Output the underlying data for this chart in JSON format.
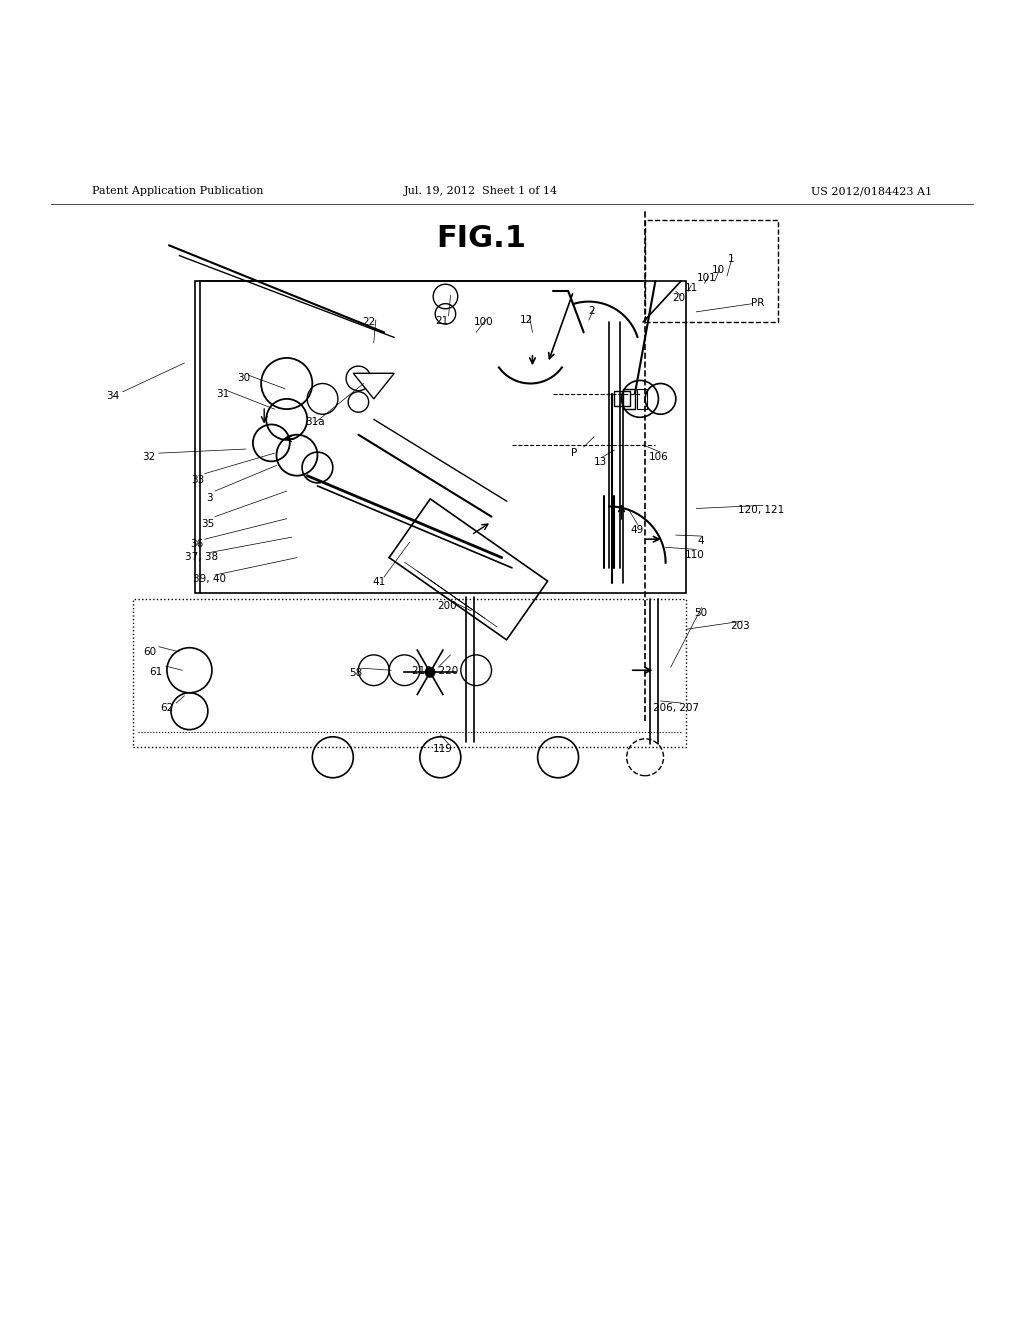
{
  "title": "FIG.1",
  "header_left": "Patent Application Publication",
  "header_center": "Jul. 19, 2012  Sheet 1 of 14",
  "header_right": "US 2012/0184423 A1",
  "bg_color": "#ffffff",
  "line_color": "#000000",
  "fig_width": 10.24,
  "fig_height": 13.2
}
